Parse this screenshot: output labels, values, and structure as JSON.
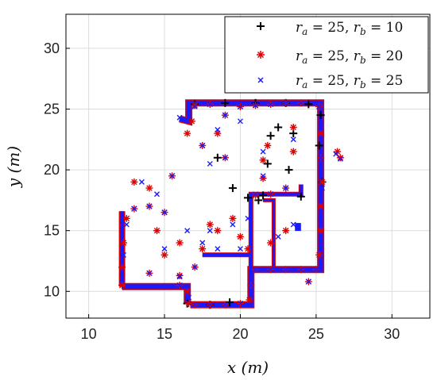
{
  "chart_data": {
    "type": "scatter",
    "title": "",
    "xlabel": "x (m)",
    "ylabel": "y (m)",
    "xlim": [
      8.5,
      32.5
    ],
    "ylim": [
      7.8,
      32.8
    ],
    "xticks": [
      10,
      15,
      20,
      25,
      30
    ],
    "yticks": [
      10,
      15,
      20,
      25,
      30
    ],
    "grid": true,
    "legend_position": "top-right",
    "series": [
      {
        "name": "r_a = 25, r_b = 10",
        "legend_label": "ra = 25, rb = 10",
        "marker": "+",
        "color": "#000000",
        "x": [
          17.0,
          19.0,
          21.0,
          23.0,
          24.5,
          25.3,
          25.2,
          25.4,
          22.5,
          23.5,
          24.0,
          21.5,
          22.0,
          20.5,
          19.5,
          18.5,
          21.8,
          23.2,
          16.5,
          18.0,
          19.3,
          21.2
        ],
        "y": [
          25.4,
          25.5,
          25.5,
          25.5,
          25.4,
          24.5,
          22.0,
          19.0,
          23.5,
          23.0,
          17.8,
          17.9,
          22.8,
          17.7,
          18.5,
          21.0,
          20.5,
          20.0,
          9.0,
          8.9,
          9.1,
          17.5
        ]
      },
      {
        "name": "r_a = 25, r_b = 20",
        "legend_label": "ra = 25, rb = 20",
        "marker": "*",
        "color": "#e00000",
        "x": [
          12.2,
          12.2,
          12.3,
          12.5,
          13.0,
          14.0,
          15.0,
          16.0,
          16.5,
          16.6,
          17.0,
          18.0,
          19.0,
          20.0,
          20.6,
          20.7,
          21.0,
          22.0,
          23.0,
          24.0,
          25.0,
          25.2,
          25.3,
          25.3,
          25.4,
          25.3,
          25.3,
          25.2,
          24.0,
          23.0,
          22.0,
          21.0,
          20.0,
          19.0,
          18.0,
          17.0,
          16.8,
          21.0,
          22.0,
          23.0,
          21.5,
          21.5,
          21.8,
          23.5,
          23.5,
          13.0,
          14.0,
          15.5,
          14.5,
          16.0,
          17.5,
          18.0,
          19.5,
          20.0,
          15.0,
          17.0,
          18.5,
          20.5,
          22.0,
          23.0,
          14.0,
          16.0,
          17.5,
          19.0,
          24.5,
          26.4,
          26.6,
          16.5,
          18.5
        ],
        "y": [
          10.5,
          12.0,
          14.0,
          16.0,
          16.8,
          17.0,
          16.5,
          11.3,
          10.0,
          9.0,
          8.9,
          8.9,
          8.9,
          9.0,
          9.3,
          10.5,
          11.8,
          11.8,
          11.8,
          11.8,
          11.8,
          13.0,
          15.0,
          17.0,
          19.0,
          21.0,
          23.0,
          25.2,
          25.5,
          25.5,
          25.4,
          25.3,
          25.2,
          24.5,
          25.4,
          25.3,
          24.0,
          17.9,
          18.0,
          18.5,
          19.3,
          20.8,
          22.0,
          21.5,
          23.5,
          19.0,
          18.5,
          19.5,
          15.0,
          14.0,
          13.5,
          15.5,
          16.0,
          14.5,
          13.0,
          12.0,
          15.0,
          13.5,
          14.0,
          15.0,
          11.5,
          10.5,
          22.0,
          21.0,
          10.8,
          21.5,
          21.0,
          23.0,
          23.0
        ]
      },
      {
        "name": "r_a = 25, r_b = 25",
        "legend_label": "ra = 25, rb = 25",
        "marker": "x",
        "color": "#1a1aff",
        "x": [
          12.2,
          12.3,
          12.5,
          13.0,
          14.0,
          15.0,
          16.0,
          16.6,
          17.0,
          18.0,
          19.0,
          20.0,
          20.7,
          21.0,
          22.0,
          23.0,
          24.0,
          25.0,
          25.3,
          25.3,
          25.4,
          25.3,
          25.3,
          25.2,
          24.0,
          23.0,
          22.0,
          21.0,
          20.0,
          19.0,
          18.0,
          17.0,
          16.0,
          21.0,
          22.0,
          23.0,
          21.5,
          21.5,
          23.5,
          13.5,
          14.5,
          15.5,
          16.5,
          17.5,
          18.5,
          19.5,
          20.5,
          15.0,
          17.0,
          18.0,
          20.0,
          22.5,
          23.5,
          14.0,
          16.0,
          17.5,
          18.0,
          19.0,
          20.0,
          24.5,
          26.3,
          26.6,
          18.5
        ],
        "y": [
          11.0,
          13.0,
          15.5,
          16.8,
          17.0,
          16.5,
          11.2,
          9.5,
          8.9,
          8.9,
          8.9,
          9.0,
          10.5,
          11.8,
          11.8,
          11.8,
          11.8,
          11.8,
          13.5,
          16.0,
          18.5,
          21.0,
          23.5,
          25.2,
          25.5,
          25.5,
          25.4,
          25.3,
          25.2,
          24.5,
          25.4,
          25.2,
          24.3,
          18.0,
          18.0,
          18.5,
          19.5,
          21.5,
          22.5,
          19.0,
          18.0,
          19.5,
          15.0,
          14.0,
          13.5,
          15.5,
          16.0,
          13.5,
          12.0,
          15.0,
          13.5,
          14.5,
          15.5,
          11.5,
          10.5,
          22.0,
          20.5,
          21.0,
          24.0,
          10.8,
          21.3,
          20.9,
          23.3
        ]
      }
    ]
  },
  "legend": {
    "entries": [
      {
        "lhs_a": "r",
        "sub_a": "a",
        "eq_a": " = 25, ",
        "lhs_b": "r",
        "sub_b": "b",
        "eq_b": " = 10"
      },
      {
        "lhs_a": "r",
        "sub_a": "a",
        "eq_a": " = 25, ",
        "lhs_b": "r",
        "sub_b": "b",
        "eq_b": " = 20"
      },
      {
        "lhs_a": "r",
        "sub_a": "a",
        "eq_a": " = 25, ",
        "lhs_b": "r",
        "sub_b": "b",
        "eq_b": " = 25"
      }
    ]
  }
}
